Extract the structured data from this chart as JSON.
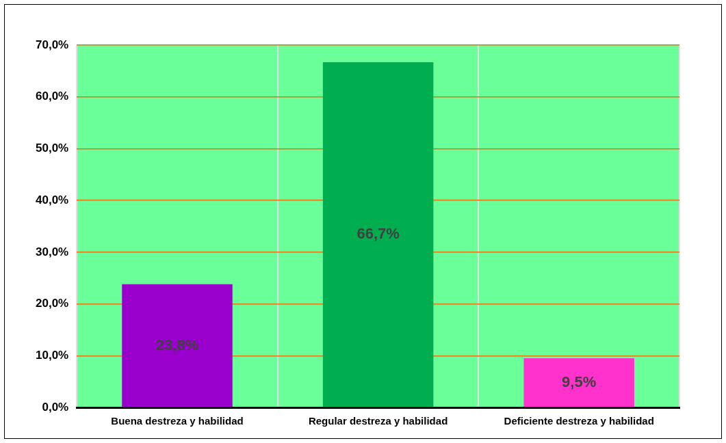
{
  "chart_data": {
    "type": "bar",
    "categories": [
      "Buena destreza y habilidad",
      "Regular destreza y habilidad",
      "Deficiente destreza y habilidad"
    ],
    "values": [
      23.8,
      66.7,
      9.5
    ],
    "colors": [
      "#9900cc",
      "#00ad4f",
      "#ff33cc"
    ],
    "value_labels": [
      "23,8%",
      "66,7%",
      "9,5%"
    ],
    "ylim": [
      0,
      70
    ],
    "yticks": [
      {
        "value": 0,
        "label": "0,0%"
      },
      {
        "value": 10,
        "label": "10,0%"
      },
      {
        "value": 20,
        "label": "20,0%"
      },
      {
        "value": 30,
        "label": "30,0%"
      },
      {
        "value": 40,
        "label": "40,0%"
      },
      {
        "value": 50,
        "label": "50,0%"
      },
      {
        "value": 60,
        "label": "60,0%"
      },
      {
        "value": 70,
        "label": "70,0%"
      }
    ],
    "grid": true
  }
}
